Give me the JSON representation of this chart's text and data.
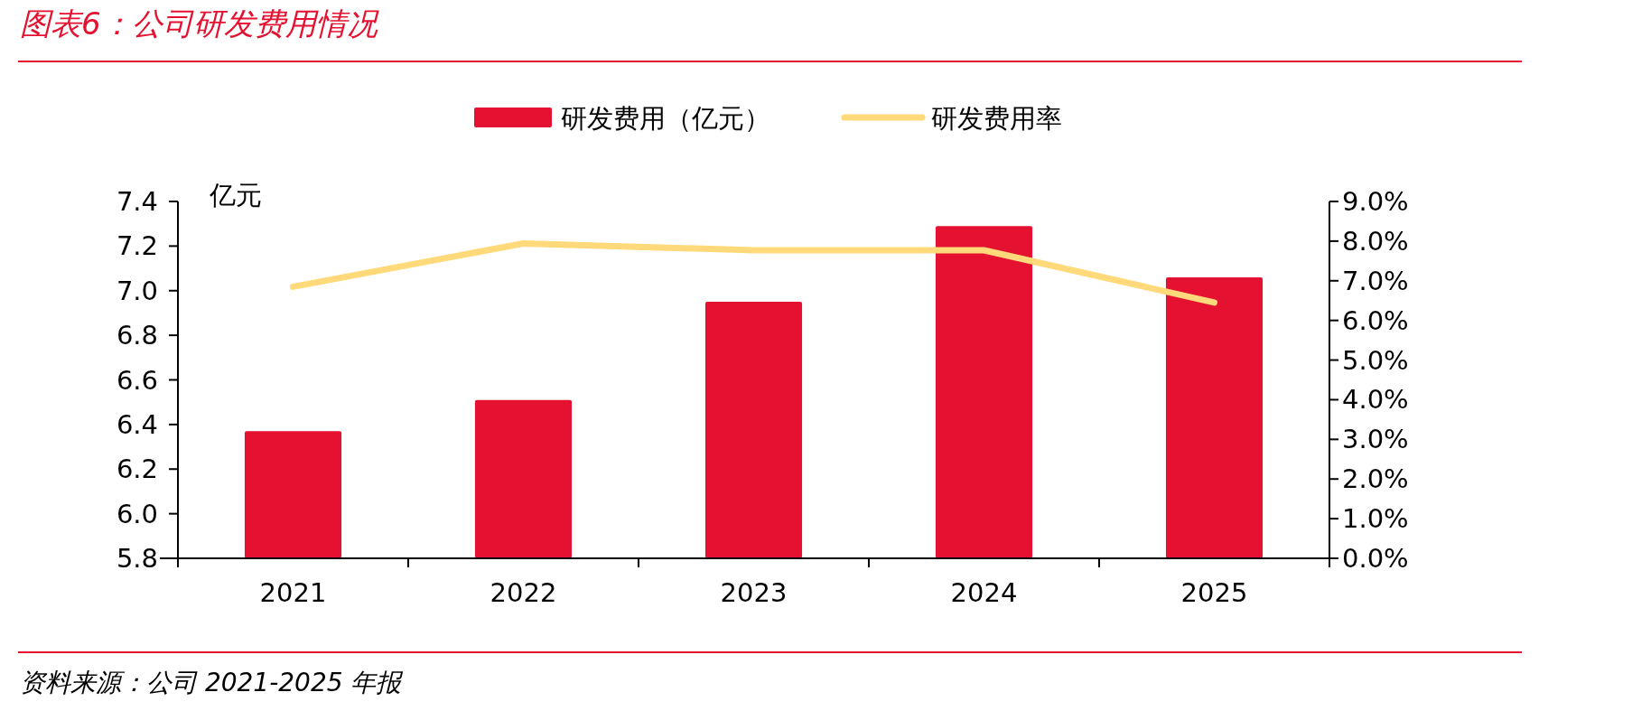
{
  "chart_data": {
    "type": "bar",
    "title": "图表6：公司研发费用情况",
    "ylabel": "亿元",
    "categories": [
      "2021",
      "2022",
      "2023",
      "2024",
      "2025"
    ],
    "series": [
      {
        "name": "研发费用（亿元）",
        "color": "#e41230",
        "values": [
          6.37,
          6.51,
          6.95,
          7.29,
          7.06
        ]
      },
      {
        "name": "研发费用率",
        "type": "line",
        "axis": "y2",
        "color": "#ffd97a",
        "values": [
          6.85,
          7.94,
          7.77,
          7.77,
          6.45
        ]
      }
    ],
    "ylim": [
      5.8,
      7.4
    ],
    "yticks": [
      {
        "value": 5.8,
        "label": "5.8"
      },
      {
        "value": 6.0,
        "label": "6.0"
      },
      {
        "value": 6.2,
        "label": "6.2"
      },
      {
        "value": 6.4,
        "label": "6.4"
      },
      {
        "value": 6.6,
        "label": "6.6"
      },
      {
        "value": 6.8,
        "label": "6.8"
      },
      {
        "value": 7.0,
        "label": "7.0"
      },
      {
        "value": 7.2,
        "label": "7.2"
      },
      {
        "value": 7.4,
        "label": "7.4"
      }
    ],
    "y2lim": [
      0,
      9
    ],
    "y2ticks": [
      {
        "value": 0,
        "label": "0.0%"
      },
      {
        "value": 1,
        "label": "1.0%"
      },
      {
        "value": 2,
        "label": "2.0%"
      },
      {
        "value": 3,
        "label": "3.0%"
      },
      {
        "value": 4,
        "label": "4.0%"
      },
      {
        "value": 5,
        "label": "5.0%"
      },
      {
        "value": 6,
        "label": "6.0%"
      },
      {
        "value": 7,
        "label": "7.0%"
      },
      {
        "value": 8,
        "label": "8.0%"
      },
      {
        "value": 9,
        "label": "9.0%"
      }
    ],
    "legend": "top",
    "grid": false,
    "marker": "none",
    "line_style": "solid",
    "annotations": [
      "资料来源：公司 2021-2025 年报"
    ]
  }
}
